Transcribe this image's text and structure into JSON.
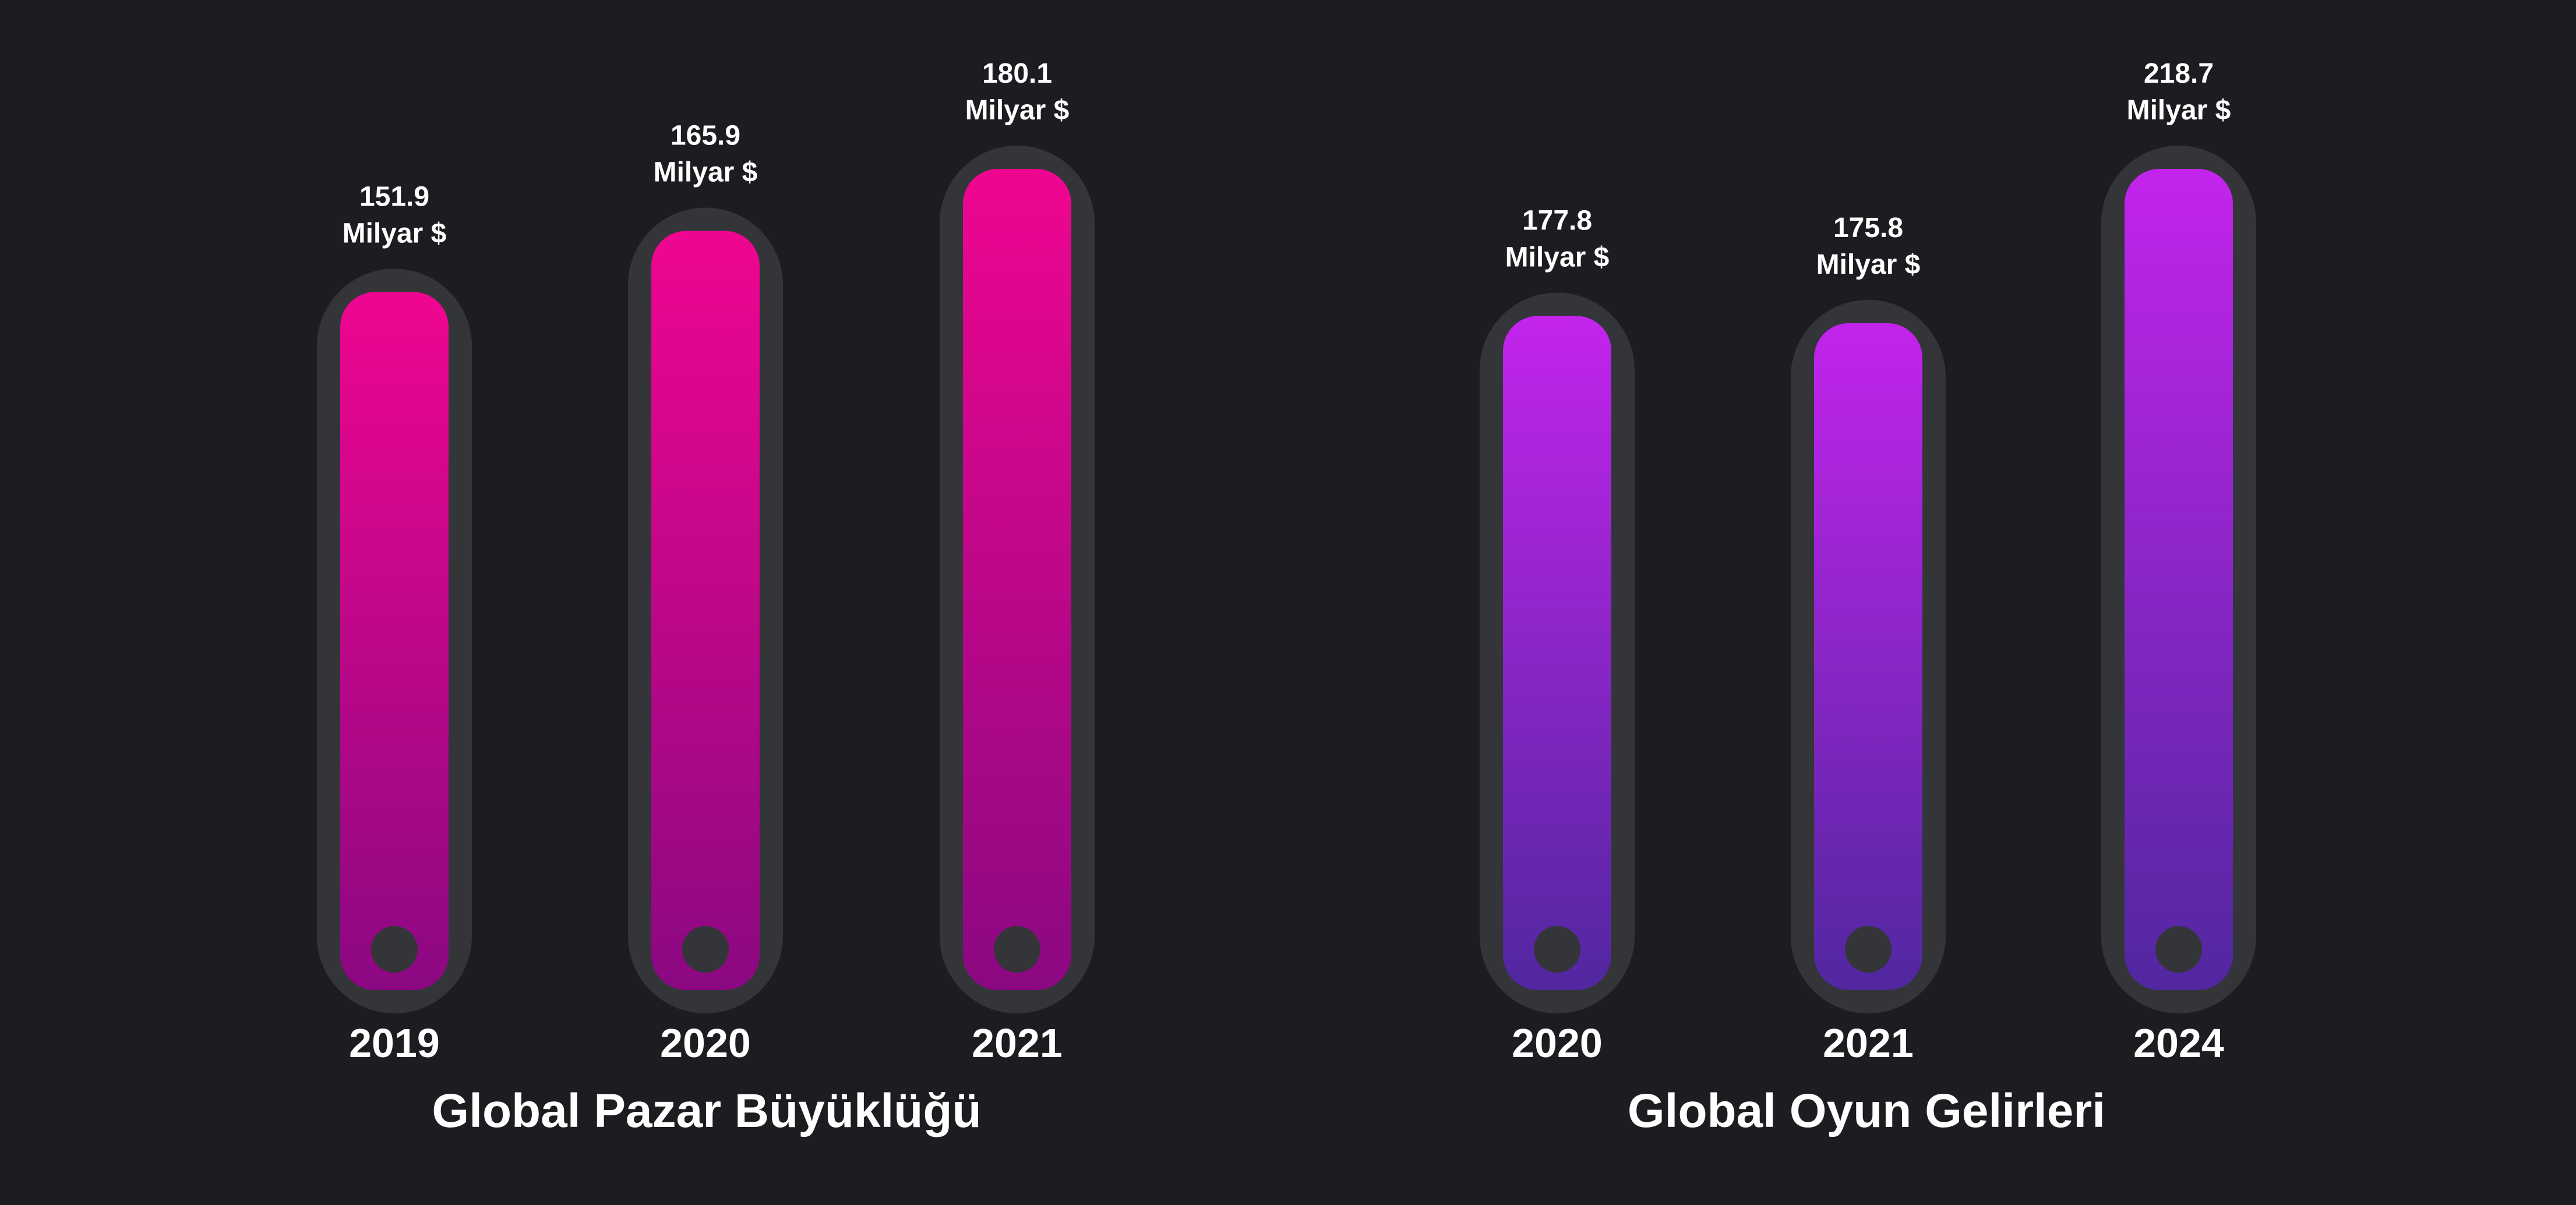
{
  "chart_data": [
    {
      "type": "bar",
      "title": "Global Pazar Büyüklüğü",
      "categories": [
        "2019",
        "2020",
        "2021"
      ],
      "values": [
        151.9,
        165.9,
        180.1
      ],
      "value_labels": [
        "151.9",
        "165.9",
        "180.1"
      ],
      "unit": "Milyar $",
      "colors": {
        "top": "#ef0690",
        "bottom": "#8b0882"
      }
    },
    {
      "type": "bar",
      "title": "Global Oyun Gelirleri",
      "categories": [
        "2020",
        "2021",
        "2024"
      ],
      "values": [
        177.8,
        175.8,
        218.7
      ],
      "value_labels": [
        "177.8",
        "175.8",
        "218.7"
      ],
      "unit": "Milyar $",
      "colors": {
        "top": "#c324ec",
        "bottom": "#5127a0"
      }
    }
  ],
  "theme": {
    "background": "#1b1d20",
    "track": "#333538",
    "text": "#ffffff"
  }
}
